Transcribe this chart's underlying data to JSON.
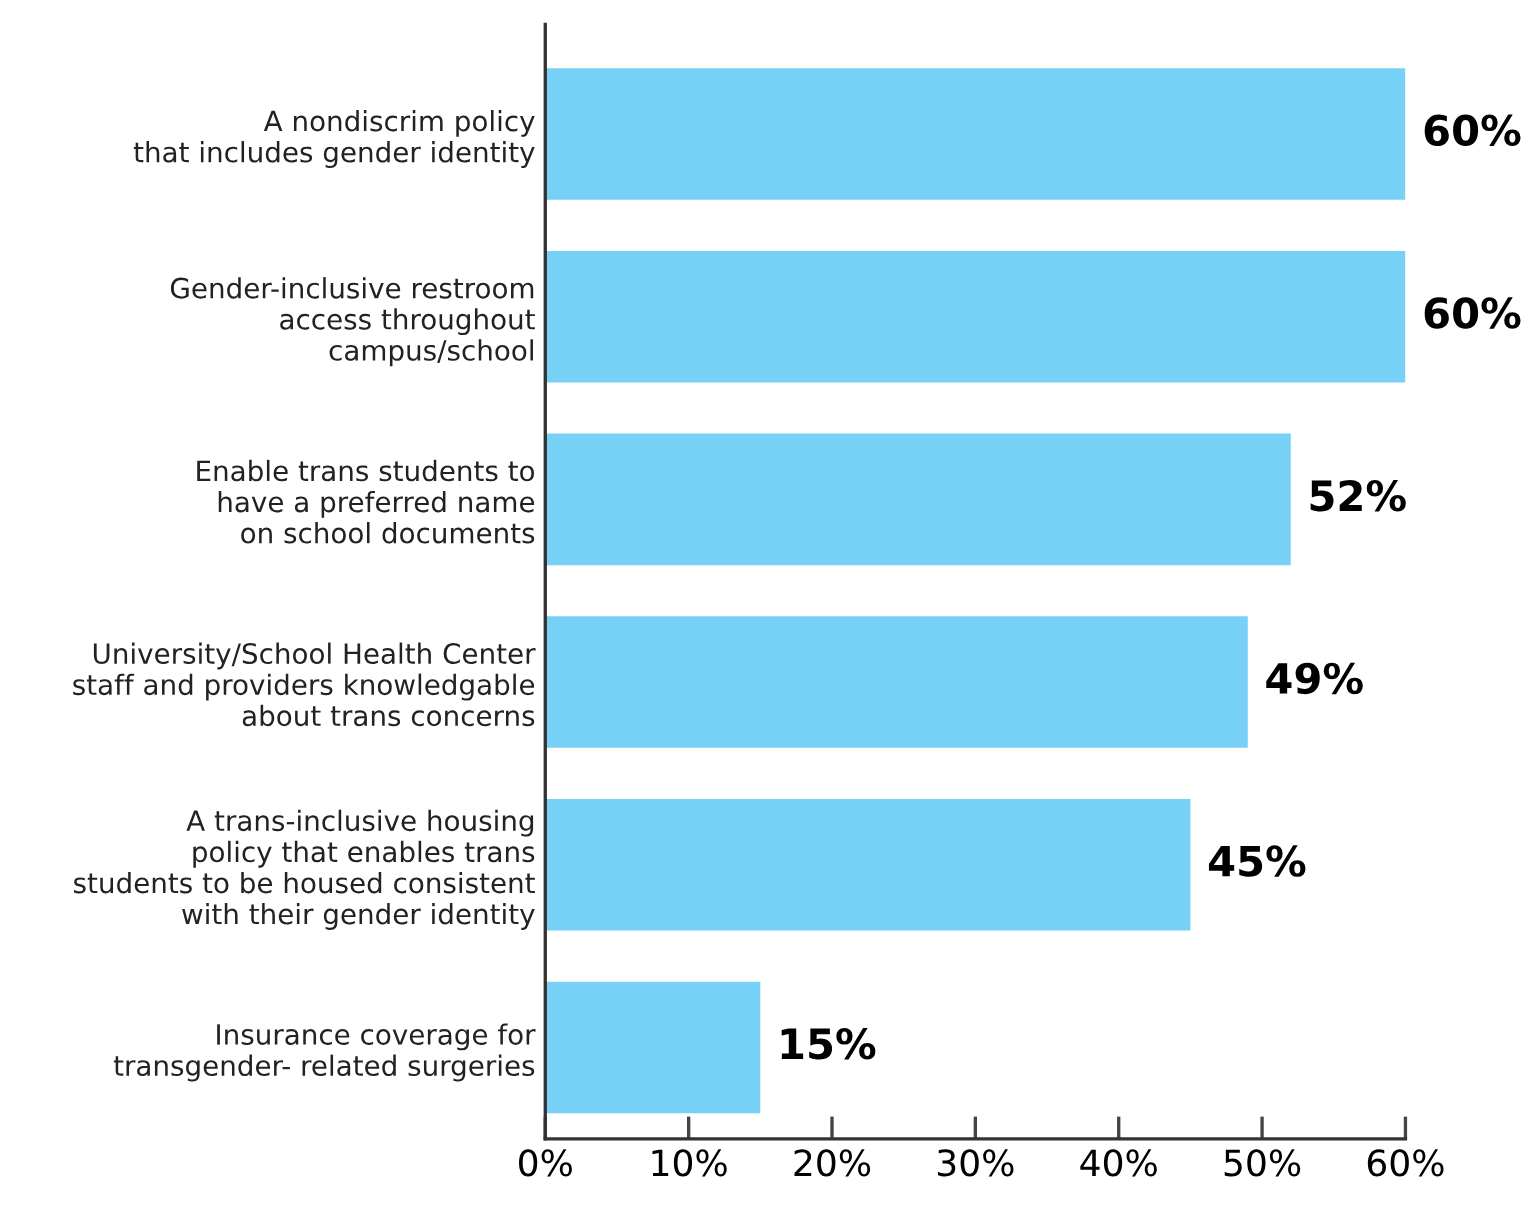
{
  "chart_data": {
    "type": "bar",
    "orientation": "horizontal",
    "categories": [
      "A nondiscrim policy\nthat includes gender identity",
      "Gender-inclusive restroom\naccess throughout\ncampus/school",
      "Enable trans students to\nhave a preferred name\non school documents",
      "University/School Health Center\nstaff and providers knowledgable\nabout trans concerns",
      "A trans-inclusive housing\npolicy that enables trans\nstudents to be housed consistent\nwith their gender identity",
      "Insurance coverage for\ntransgender- related surgeries"
    ],
    "values": [
      60,
      60,
      52,
      49,
      45,
      15
    ],
    "value_labels": [
      "60%",
      "60%",
      "52%",
      "49%",
      "45%",
      "15%"
    ],
    "color": "#77d0f5",
    "xlim": [
      0,
      60
    ],
    "xticks": [
      {
        "value": 0,
        "label": "0%"
      },
      {
        "value": 10,
        "label": "10%"
      },
      {
        "value": 20,
        "label": "20%"
      },
      {
        "value": 30,
        "label": "30%"
      },
      {
        "value": 40,
        "label": "40%"
      },
      {
        "value": 50,
        "label": "50%"
      },
      {
        "value": 60,
        "label": "60%"
      }
    ],
    "grid": false,
    "legend": false
  }
}
